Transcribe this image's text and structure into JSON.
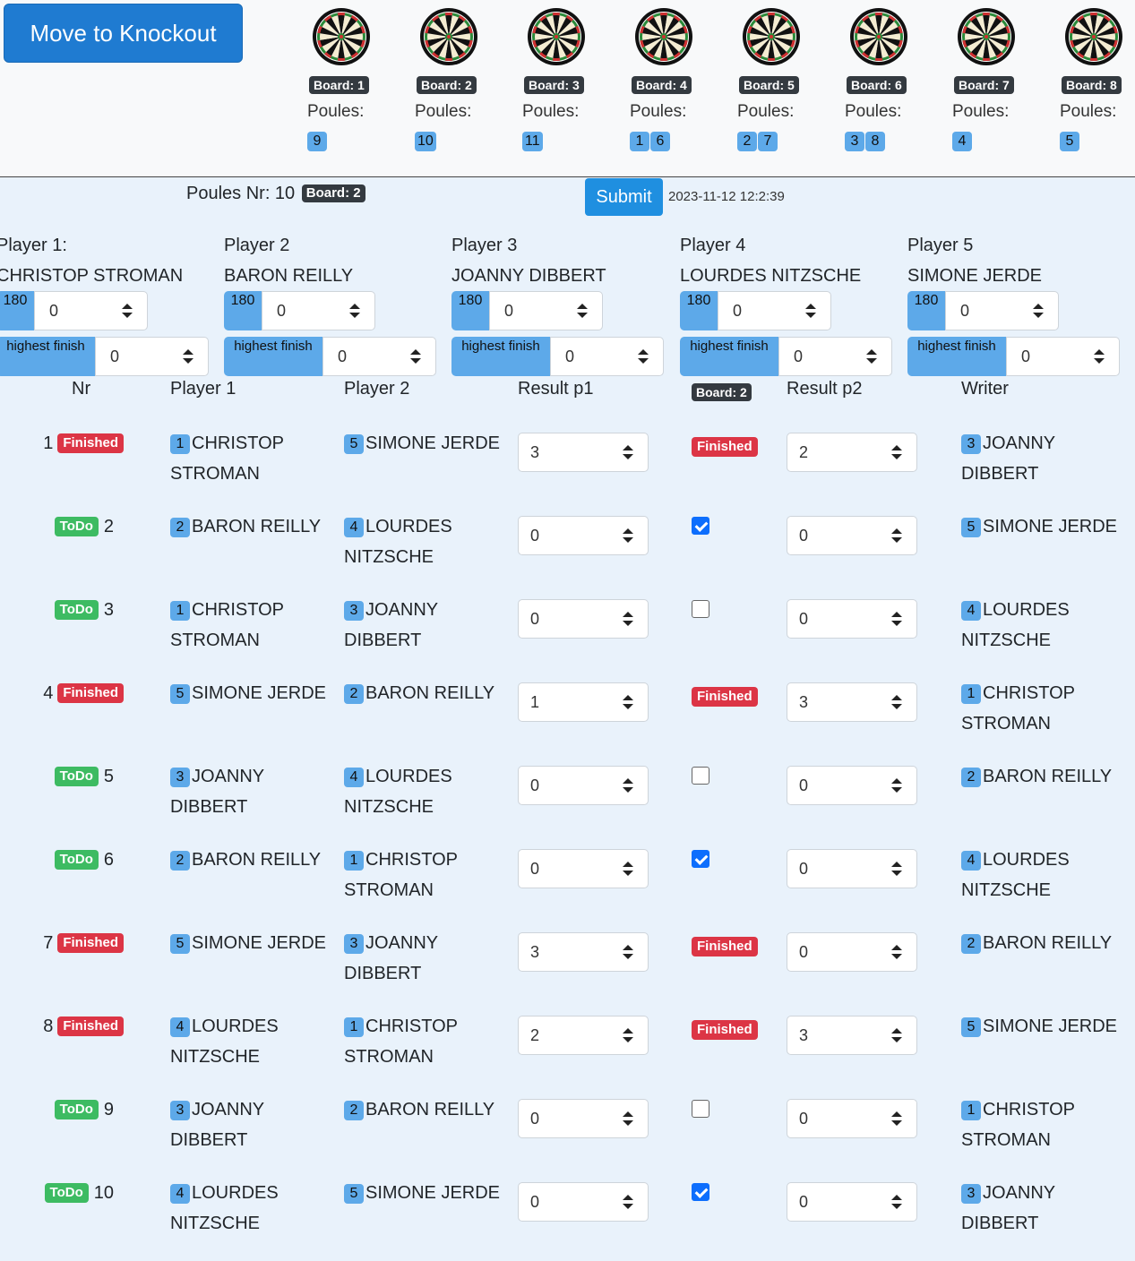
{
  "topbar": {
    "knockout_label": "Move to Knockout",
    "poules_label": "Poules:",
    "boards": [
      {
        "label": "Board: 1",
        "poules": [
          "9"
        ]
      },
      {
        "label": "Board: 2",
        "poules": [
          "10"
        ]
      },
      {
        "label": "Board: 3",
        "poules": [
          "11"
        ]
      },
      {
        "label": "Board: 4",
        "poules": [
          "1",
          "6"
        ]
      },
      {
        "label": "Board: 5",
        "poules": [
          "2",
          "7"
        ]
      },
      {
        "label": "Board: 6",
        "poules": [
          "3",
          "8"
        ]
      },
      {
        "label": "Board: 7",
        "poules": [
          "4"
        ]
      },
      {
        "label": "Board: 8",
        "poules": [
          "5"
        ]
      }
    ]
  },
  "poule": {
    "title": "Poules Nr: 10",
    "board": "Board: 2",
    "submit_label": "Submit",
    "timestamp": "2023-11-12 12:2:39"
  },
  "players": [
    {
      "title": "Player 1:",
      "name": "CHRISTOP STROMAN",
      "label_180": "180",
      "value_180": "0",
      "label_hf": "highest finish",
      "value_hf": "0"
    },
    {
      "title": "Player 2",
      "name": "BARON REILLY",
      "label_180": "180",
      "value_180": "0",
      "label_hf": "highest finish",
      "value_hf": "0"
    },
    {
      "title": "Player 3",
      "name": "JOANNY DIBBERT",
      "label_180": "180",
      "value_180": "0",
      "label_hf": "highest finish",
      "value_hf": "0"
    },
    {
      "title": "Player 4",
      "name": "LOURDES NITZSCHE",
      "label_180": "180",
      "value_180": "0",
      "label_hf": "highest finish",
      "value_hf": "0"
    },
    {
      "title": "Player 5",
      "name": "SIMONE JERDE",
      "label_180": "180",
      "value_180": "0",
      "label_hf": "highest finish",
      "value_hf": "0"
    }
  ],
  "table": {
    "headers": {
      "nr": "Nr",
      "p1": "Player 1",
      "p2": "Player 2",
      "r1": "Result p1",
      "board": "Board: 2",
      "r2": "Result p2",
      "writer": "Writer"
    },
    "status_labels": {
      "finished": "Finished",
      "todo": "ToDo"
    },
    "rows": [
      {
        "nr": "1",
        "status": "finished",
        "p1n": "1",
        "p1": "CHRISTOP STROMAN",
        "p2n": "5",
        "p2": "SIMONE JERDE",
        "r1": "3",
        "mid": "finished",
        "r2": "2",
        "wn": "3",
        "writer": "JOANNY DIBBERT"
      },
      {
        "nr": "2",
        "status": "todo",
        "p1n": "2",
        "p1": "BARON REILLY",
        "p2n": "4",
        "p2": "LOURDES NITZSCHE",
        "r1": "0",
        "mid": "checked",
        "r2": "0",
        "wn": "5",
        "writer": "SIMONE JERDE"
      },
      {
        "nr": "3",
        "status": "todo",
        "p1n": "1",
        "p1": "CHRISTOP STROMAN",
        "p2n": "3",
        "p2": "JOANNY DIBBERT",
        "r1": "0",
        "mid": "unchecked",
        "r2": "0",
        "wn": "4",
        "writer": "LOURDES NITZSCHE"
      },
      {
        "nr": "4",
        "status": "finished",
        "p1n": "5",
        "p1": "SIMONE JERDE",
        "p2n": "2",
        "p2": "BARON REILLY",
        "r1": "1",
        "mid": "finished",
        "r2": "3",
        "wn": "1",
        "writer": "CHRISTOP STROMAN"
      },
      {
        "nr": "5",
        "status": "todo",
        "p1n": "3",
        "p1": "JOANNY DIBBERT",
        "p2n": "4",
        "p2": "LOURDES NITZSCHE",
        "r1": "0",
        "mid": "unchecked",
        "r2": "0",
        "wn": "2",
        "writer": "BARON REILLY"
      },
      {
        "nr": "6",
        "status": "todo",
        "p1n": "2",
        "p1": "BARON REILLY",
        "p2n": "1",
        "p2": "CHRISTOP STROMAN",
        "r1": "0",
        "mid": "checked",
        "r2": "0",
        "wn": "4",
        "writer": "LOURDES NITZSCHE"
      },
      {
        "nr": "7",
        "status": "finished",
        "p1n": "5",
        "p1": "SIMONE JERDE",
        "p2n": "3",
        "p2": "JOANNY DIBBERT",
        "r1": "3",
        "mid": "finished",
        "r2": "0",
        "wn": "2",
        "writer": "BARON REILLY"
      },
      {
        "nr": "8",
        "status": "finished",
        "p1n": "4",
        "p1": "LOURDES NITZSCHE",
        "p2n": "1",
        "p2": "CHRISTOP STROMAN",
        "r1": "2",
        "mid": "finished",
        "r2": "3",
        "wn": "5",
        "writer": "SIMONE JERDE"
      },
      {
        "nr": "9",
        "status": "todo",
        "p1n": "3",
        "p1": "JOANNY DIBBERT",
        "p2n": "2",
        "p2": "BARON REILLY",
        "r1": "0",
        "mid": "unchecked",
        "r2": "0",
        "wn": "1",
        "writer": "CHRISTOP STROMAN"
      },
      {
        "nr": "10",
        "status": "todo",
        "p1n": "4",
        "p1": "LOURDES NITZSCHE",
        "p2n": "5",
        "p2": "SIMONE JERDE",
        "r1": "0",
        "mid": "checked",
        "r2": "0",
        "wn": "3",
        "writer": "JOANNY DIBBERT"
      }
    ]
  },
  "colors": {
    "primary": "#1f7bd1",
    "badge": "#5da9e9",
    "finished": "#dc3545",
    "todo": "#3dbb62",
    "dark_pill": "#343a40"
  }
}
